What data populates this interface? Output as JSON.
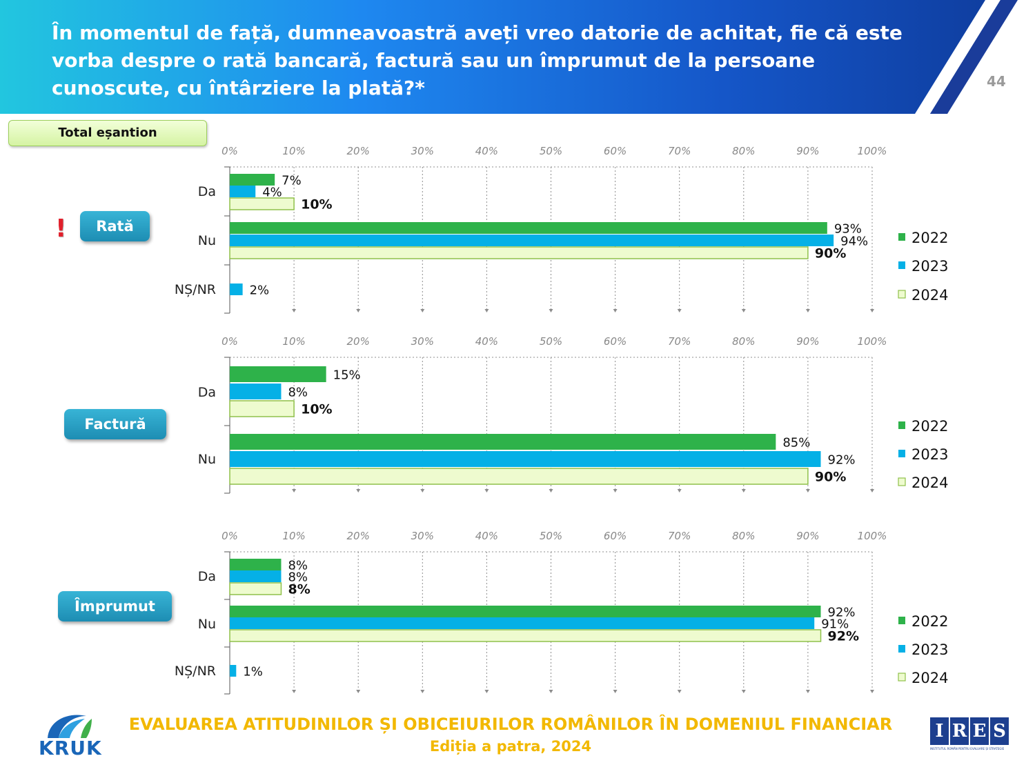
{
  "header": {
    "title": "În momentul de față, dumneavoastră aveți vreo datorie de achitat, fie că este vorba despre o rată bancară, factură sau un împrumut de la persoane cunoscute, cu întârziere la plată?*",
    "page_number": "44"
  },
  "sample_label": "Total eșantion",
  "alert_symbol": "!",
  "colors": {
    "y2022": "#2eb24a",
    "y2023": "#05b0e6",
    "y2024": "#eefbcf",
    "y2024_border": "#8fc04a"
  },
  "chart_data": [
    {
      "type": "bar",
      "section_label": "Rată",
      "axis_ticks": [
        "0%",
        "10%",
        "20%",
        "30%",
        "40%",
        "50%",
        "60%",
        "70%",
        "80%",
        "90%",
        "100%"
      ],
      "xlim": [
        0,
        100
      ],
      "categories": [
        "Da",
        "Nu",
        "NȘ/NR"
      ],
      "series": [
        {
          "name": "2022",
          "values": [
            7,
            93,
            null
          ],
          "labels": [
            "7%",
            "93%",
            ""
          ]
        },
        {
          "name": "2023",
          "values": [
            4,
            94,
            2
          ],
          "labels": [
            "4%",
            "94%",
            "2%"
          ]
        },
        {
          "name": "2024",
          "values": [
            10,
            90,
            null
          ],
          "labels": [
            "10%",
            "90%",
            ""
          ]
        }
      ],
      "legend": [
        "2022",
        "2023",
        "2024"
      ]
    },
    {
      "type": "bar",
      "section_label": "Factură",
      "axis_ticks": [
        "0%",
        "10%",
        "20%",
        "30%",
        "40%",
        "50%",
        "60%",
        "70%",
        "80%",
        "90%",
        "100%"
      ],
      "xlim": [
        0,
        100
      ],
      "categories": [
        "Da",
        "Nu"
      ],
      "series": [
        {
          "name": "2022",
          "values": [
            15,
            85
          ],
          "labels": [
            "15%",
            "85%"
          ]
        },
        {
          "name": "2023",
          "values": [
            8,
            92
          ],
          "labels": [
            "8%",
            "92%"
          ]
        },
        {
          "name": "2024",
          "values": [
            10,
            90
          ],
          "labels": [
            "10%",
            "90%"
          ]
        }
      ],
      "legend": [
        "2022",
        "2023",
        "2024"
      ]
    },
    {
      "type": "bar",
      "section_label": "Împrumut",
      "axis_ticks": [
        "0%",
        "10%",
        "20%",
        "30%",
        "40%",
        "50%",
        "60%",
        "70%",
        "80%",
        "90%",
        "100%"
      ],
      "xlim": [
        0,
        100
      ],
      "categories": [
        "Da",
        "Nu",
        "NȘ/NR"
      ],
      "series": [
        {
          "name": "2022",
          "values": [
            8,
            92,
            null
          ],
          "labels": [
            "8%",
            "92%",
            ""
          ]
        },
        {
          "name": "2023",
          "values": [
            8,
            91,
            1
          ],
          "labels": [
            "8%",
            "91%",
            "1%"
          ]
        },
        {
          "name": "2024",
          "values": [
            8,
            92,
            null
          ],
          "labels": [
            "8%",
            "92%",
            ""
          ]
        }
      ],
      "legend": [
        "2022",
        "2023",
        "2024"
      ]
    }
  ],
  "footer": {
    "title": "EVALUAREA ATITUDINILOR ȘI OBICEIURILOR ROMÂNILOR ÎN DOMENIUL FINANCIAR",
    "subtitle": "Ediția a patra, 2024"
  },
  "logos": {
    "left": "KRUK",
    "right_letters": [
      "I",
      "R",
      "E",
      "S"
    ],
    "right_caption": "INSTITUTUL ROMÂN PENTRU EVALUARE ȘI STRATEGIE"
  }
}
